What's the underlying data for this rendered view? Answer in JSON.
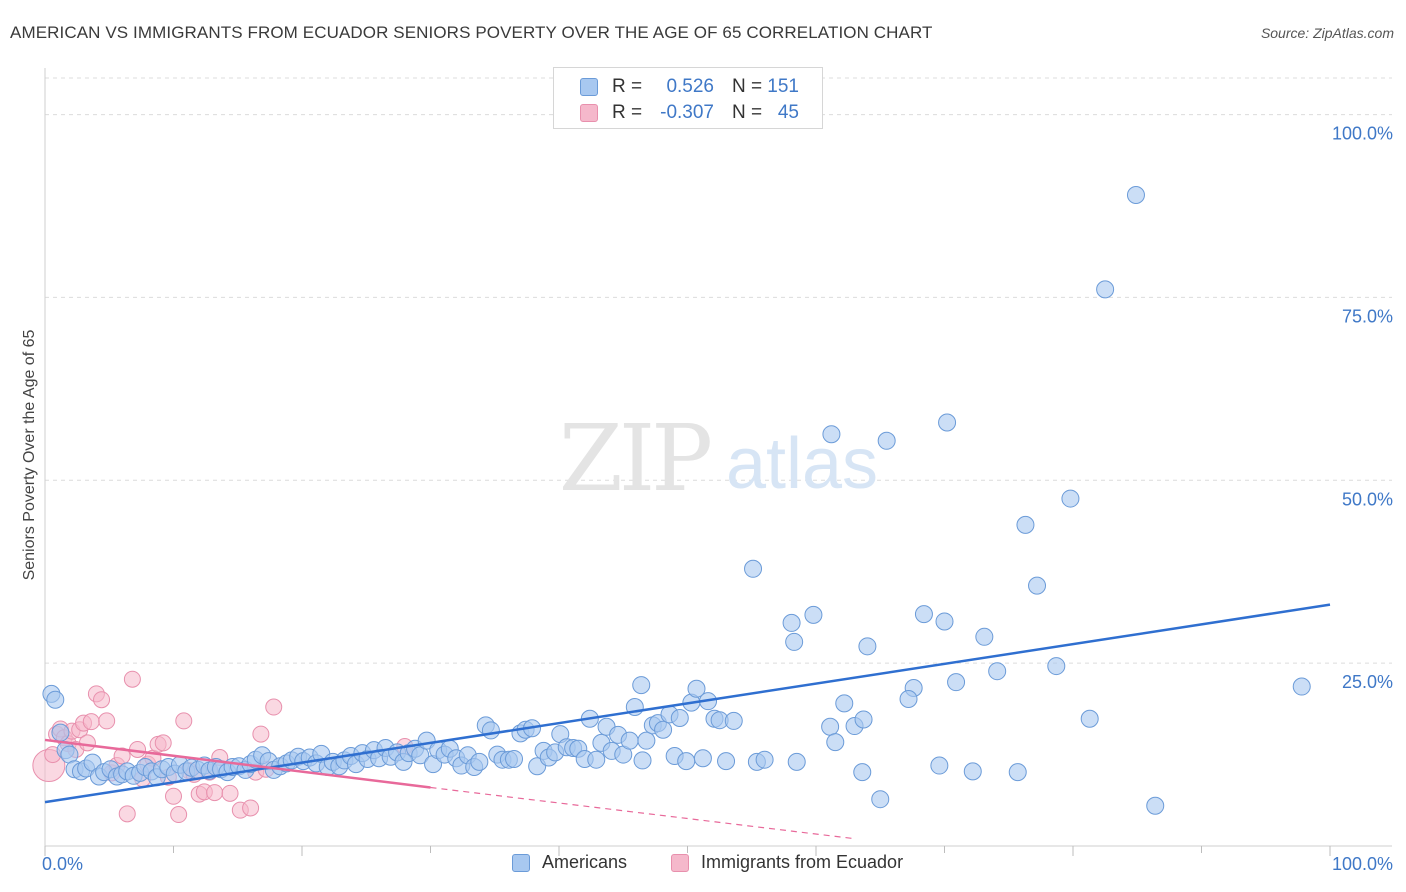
{
  "title": "AMERICAN VS IMMIGRANTS FROM ECUADOR SENIORS POVERTY OVER THE AGE OF 65 CORRELATION CHART",
  "source": "Source: ZipAtlas.com",
  "watermark": {
    "zip": "ZIP",
    "atlas": "atlas"
  },
  "colors": {
    "blue_fill": "#a8c8f0",
    "blue_stroke": "#6b9bd8",
    "blue_line": "#2f6fd0",
    "pink_fill": "#f5b8cb",
    "pink_stroke": "#e890ad",
    "pink_line": "#e8699a",
    "tick_text": "#3f78c7",
    "grid": "#dcdcdc"
  },
  "legend_top": [
    {
      "r_label": "R =",
      "r_value": "0.526",
      "n_label": "N =",
      "n_value": "151"
    },
    {
      "r_label": "R =",
      "r_value": "-0.307",
      "n_label": "N =",
      "n_value": "45"
    }
  ],
  "chart_data": {
    "type": "scatter",
    "title": "AMERICAN VS IMMIGRANTS FROM ECUADOR SENIORS POVERTY OVER THE AGE OF 65 CORRELATION CHART",
    "xlabel": "",
    "ylabel": "Seniors Poverty Over the Age of 65",
    "xlim": [
      0,
      100
    ],
    "ylim": [
      0,
      105
    ],
    "x_tick_labels": [
      "0.0%",
      "100.0%"
    ],
    "y_ticks": [
      25,
      50,
      75,
      100
    ],
    "y_tick_labels": [
      "25.0%",
      "50.0%",
      "75.0%",
      "100.0%"
    ],
    "grid": true,
    "legend_position": "bottom",
    "series": [
      {
        "name": "Americans",
        "color": "#a8c8f0",
        "trend": {
          "x": [
            0,
            100
          ],
          "y": [
            6.0,
            33.0
          ]
        },
        "points": [
          [
            0.5,
            20.8
          ],
          [
            0.8,
            20.0
          ],
          [
            1.2,
            15.5
          ],
          [
            1.6,
            13.1
          ],
          [
            1.9,
            12.5
          ],
          [
            2.3,
            10.5
          ],
          [
            2.8,
            10.2
          ],
          [
            3.2,
            10.6
          ],
          [
            3.7,
            11.4
          ],
          [
            4.2,
            9.5
          ],
          [
            4.6,
            10.1
          ],
          [
            5.1,
            10.5
          ],
          [
            5.6,
            9.5
          ],
          [
            6.0,
            9.8
          ],
          [
            6.4,
            10.2
          ],
          [
            6.9,
            9.6
          ],
          [
            7.4,
            10.0
          ],
          [
            7.8,
            10.8
          ],
          [
            8.3,
            10.2
          ],
          [
            8.7,
            9.4
          ],
          [
            9.1,
            10.5
          ],
          [
            9.6,
            10.8
          ],
          [
            10.1,
            9.9
          ],
          [
            10.5,
            11.1
          ],
          [
            11.0,
            10.2
          ],
          [
            11.4,
            10.7
          ],
          [
            11.9,
            10.4
          ],
          [
            12.4,
            11.0
          ],
          [
            12.8,
            10.3
          ],
          [
            13.3,
            10.8
          ],
          [
            13.7,
            10.5
          ],
          [
            14.2,
            10.1
          ],
          [
            14.6,
            10.8
          ],
          [
            15.1,
            10.9
          ],
          [
            15.6,
            10.4
          ],
          [
            16.0,
            11.2
          ],
          [
            16.4,
            11.8
          ],
          [
            16.9,
            12.4
          ],
          [
            17.4,
            11.6
          ],
          [
            17.8,
            10.4
          ],
          [
            18.3,
            10.9
          ],
          [
            18.8,
            11.3
          ],
          [
            19.2,
            11.7
          ],
          [
            19.7,
            12.2
          ],
          [
            20.1,
            11.6
          ],
          [
            20.6,
            12.1
          ],
          [
            21.1,
            11.3
          ],
          [
            21.5,
            12.6
          ],
          [
            22.0,
            10.8
          ],
          [
            22.4,
            11.5
          ],
          [
            22.9,
            10.9
          ],
          [
            23.3,
            11.7
          ],
          [
            23.8,
            12.3
          ],
          [
            24.2,
            11.2
          ],
          [
            24.7,
            12.7
          ],
          [
            25.1,
            11.9
          ],
          [
            25.6,
            13.1
          ],
          [
            26.0,
            12.0
          ],
          [
            26.5,
            13.4
          ],
          [
            26.9,
            12.2
          ],
          [
            27.4,
            12.8
          ],
          [
            27.9,
            11.5
          ],
          [
            28.3,
            12.7
          ],
          [
            28.8,
            13.3
          ],
          [
            29.2,
            12.4
          ],
          [
            29.7,
            14.4
          ],
          [
            30.2,
            11.2
          ],
          [
            30.6,
            13.1
          ],
          [
            31.1,
            12.5
          ],
          [
            31.5,
            13.3
          ],
          [
            32.0,
            12.0
          ],
          [
            32.4,
            11.0
          ],
          [
            32.9,
            12.4
          ],
          [
            33.4,
            10.8
          ],
          [
            33.8,
            11.5
          ],
          [
            34.3,
            16.5
          ],
          [
            34.7,
            15.8
          ],
          [
            35.2,
            12.5
          ],
          [
            35.6,
            11.8
          ],
          [
            36.1,
            11.8
          ],
          [
            36.5,
            11.9
          ],
          [
            37.0,
            15.4
          ],
          [
            37.4,
            15.9
          ],
          [
            37.9,
            16.1
          ],
          [
            38.3,
            10.9
          ],
          [
            38.8,
            13.0
          ],
          [
            39.2,
            12.1
          ],
          [
            39.7,
            12.8
          ],
          [
            40.1,
            15.3
          ],
          [
            40.6,
            13.5
          ],
          [
            41.1,
            13.4
          ],
          [
            41.5,
            13.3
          ],
          [
            42.0,
            11.9
          ],
          [
            42.4,
            17.4
          ],
          [
            42.9,
            11.8
          ],
          [
            43.3,
            14.1
          ],
          [
            43.7,
            16.3
          ],
          [
            44.1,
            13.0
          ],
          [
            44.6,
            15.2
          ],
          [
            45.0,
            12.5
          ],
          [
            45.5,
            14.4
          ],
          [
            45.9,
            19.0
          ],
          [
            46.4,
            22.0
          ],
          [
            46.8,
            14.4
          ],
          [
            47.3,
            16.5
          ],
          [
            47.7,
            16.8
          ],
          [
            48.1,
            15.9
          ],
          [
            48.6,
            18.0
          ],
          [
            49.0,
            12.3
          ],
          [
            49.4,
            17.5
          ],
          [
            49.9,
            11.6
          ],
          [
            50.3,
            19.6
          ],
          [
            50.7,
            21.5
          ],
          [
            51.2,
            12.0
          ],
          [
            51.6,
            19.8
          ],
          [
            52.1,
            17.4
          ],
          [
            52.5,
            17.2
          ],
          [
            53.0,
            11.6
          ],
          [
            53.6,
            17.1
          ],
          [
            55.4,
            11.5
          ],
          [
            56.0,
            11.8
          ],
          [
            55.1,
            37.9
          ],
          [
            58.1,
            30.5
          ],
          [
            58.3,
            27.9
          ],
          [
            59.8,
            31.6
          ],
          [
            61.1,
            16.3
          ],
          [
            61.5,
            14.2
          ],
          [
            61.2,
            56.3
          ],
          [
            62.2,
            19.5
          ],
          [
            63.0,
            16.4
          ],
          [
            63.7,
            17.3
          ],
          [
            64.0,
            27.3
          ],
          [
            65.5,
            55.4
          ],
          [
            67.6,
            21.6
          ],
          [
            67.2,
            20.1
          ],
          [
            68.4,
            31.7
          ],
          [
            69.6,
            11.0
          ],
          [
            70.0,
            30.7
          ],
          [
            70.2,
            57.9
          ],
          [
            70.9,
            22.4
          ],
          [
            72.2,
            10.2
          ],
          [
            73.1,
            28.6
          ],
          [
            74.1,
            23.9
          ],
          [
            75.7,
            10.1
          ],
          [
            76.3,
            43.9
          ],
          [
            77.2,
            35.6
          ],
          [
            78.7,
            24.6
          ],
          [
            79.8,
            47.5
          ],
          [
            81.3,
            17.4
          ],
          [
            82.5,
            76.1
          ],
          [
            84.9,
            89.0
          ],
          [
            86.4,
            5.5
          ],
          [
            97.8,
            21.8
          ],
          [
            63.6,
            10.1
          ],
          [
            65.0,
            6.4
          ],
          [
            58.5,
            11.5
          ],
          [
            46.5,
            11.7
          ]
        ]
      },
      {
        "name": "Immigrants from Ecuador",
        "color": "#f5b8cb",
        "trend": {
          "x": [
            0,
            30
          ],
          "y": [
            14.5,
            8.0
          ],
          "dashed_to": {
            "x": 63,
            "y": 1.0
          }
        },
        "points": [
          [
            0.3,
            11.0
          ],
          [
            0.6,
            12.5
          ],
          [
            0.9,
            15.3
          ],
          [
            1.2,
            16.0
          ],
          [
            1.5,
            14.8
          ],
          [
            1.8,
            14.0
          ],
          [
            2.1,
            15.7
          ],
          [
            2.4,
            13.2
          ],
          [
            2.7,
            15.9
          ],
          [
            3.0,
            16.8
          ],
          [
            3.3,
            14.1
          ],
          [
            3.6,
            17.0
          ],
          [
            4.0,
            20.8
          ],
          [
            4.4,
            20.0
          ],
          [
            4.8,
            17.1
          ],
          [
            5.2,
            10.0
          ],
          [
            5.6,
            11.0
          ],
          [
            6.0,
            12.3
          ],
          [
            6.4,
            4.4
          ],
          [
            6.8,
            22.8
          ],
          [
            7.2,
            13.2
          ],
          [
            7.6,
            9.2
          ],
          [
            8.0,
            11.2
          ],
          [
            8.4,
            12.0
          ],
          [
            8.8,
            13.9
          ],
          [
            9.2,
            14.1
          ],
          [
            9.6,
            9.4
          ],
          [
            10.0,
            6.8
          ],
          [
            10.4,
            4.3
          ],
          [
            10.8,
            17.1
          ],
          [
            11.2,
            10.3
          ],
          [
            11.6,
            9.8
          ],
          [
            12.0,
            7.1
          ],
          [
            12.4,
            7.4
          ],
          [
            12.8,
            10.1
          ],
          [
            13.2,
            7.3
          ],
          [
            13.6,
            12.1
          ],
          [
            14.4,
            7.2
          ],
          [
            15.2,
            4.9
          ],
          [
            16.0,
            5.2
          ],
          [
            16.4,
            10.1
          ],
          [
            16.8,
            15.3
          ],
          [
            17.2,
            10.5
          ],
          [
            17.8,
            19.0
          ],
          [
            28.0,
            13.6
          ]
        ]
      }
    ]
  },
  "legend_bottom": [
    {
      "label": "Americans"
    },
    {
      "label": "Immigrants from Ecuador"
    }
  ]
}
